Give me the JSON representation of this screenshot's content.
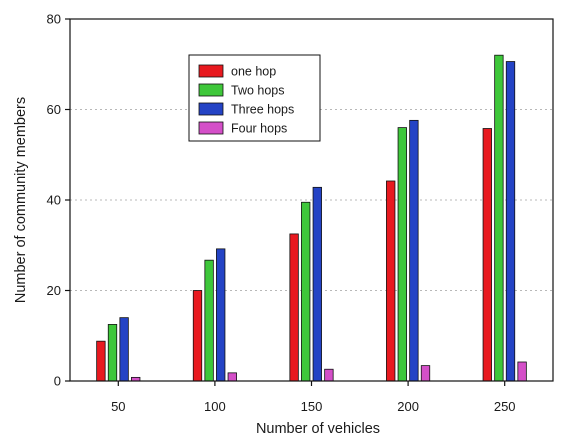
{
  "chart_data": {
    "type": "bar",
    "xlabel": "Number of vehicles",
    "ylabel": "Number of community members",
    "categories": [
      "50",
      "100",
      "150",
      "200",
      "250"
    ],
    "ylim": [
      0,
      80
    ],
    "yticks": [
      0,
      20,
      40,
      60,
      80
    ],
    "grid": "horizontal dotted",
    "legend_position": "top-left",
    "series": [
      {
        "name": "one hop",
        "color": "#e8191f",
        "values": [
          8.8,
          20,
          32.5,
          44.2,
          55.8
        ]
      },
      {
        "name": "Two hops",
        "color": "#3ec73a",
        "values": [
          12.5,
          26.7,
          39.5,
          56,
          72
        ]
      },
      {
        "name": "Three hops",
        "color": "#2443c5",
        "values": [
          14,
          29.2,
          42.8,
          57.6,
          70.6
        ]
      },
      {
        "name": "Four hops",
        "color": "#d44fc8",
        "values": [
          0.8,
          1.8,
          2.6,
          3.4,
          4.2
        ]
      }
    ]
  }
}
